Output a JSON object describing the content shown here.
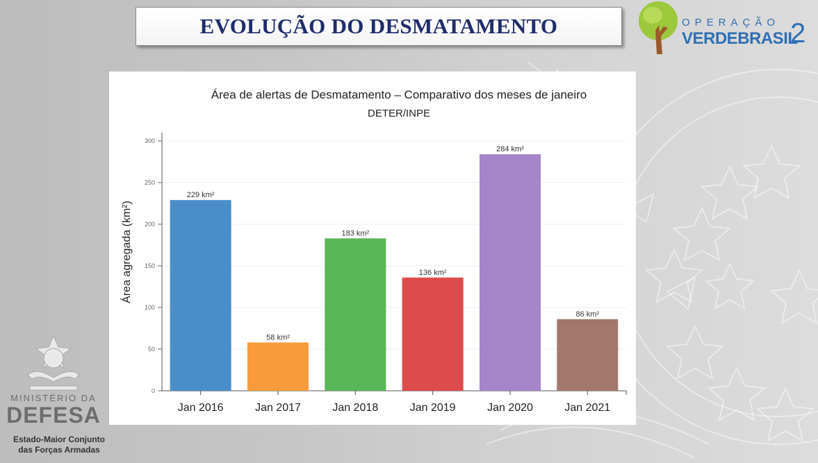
{
  "header": {
    "title": "EVOLUÇÃO DO DESMATAMENTO"
  },
  "logo_operacao": {
    "line1": "OPERAÇÃO",
    "line2": "VERDEBRASIL",
    "number": "2"
  },
  "ministry": {
    "label": "MINISTÉRIO DA",
    "name": "DEFESA",
    "subtitle_line1": "Estado-Maior Conjunto",
    "subtitle_line2": "das Forças Armadas"
  },
  "chart_data": {
    "type": "bar",
    "title": "Área de alertas de Desmatamento – Comparativo dos meses de janeiro",
    "subtitle": "DETER/INPE",
    "xlabel": "",
    "ylabel": "Área agregada (km²)",
    "ylim": [
      0,
      310
    ],
    "yticks": [
      0,
      50,
      100,
      150,
      200,
      250,
      300
    ],
    "grid": true,
    "categories": [
      "Jan 2016",
      "Jan 2017",
      "Jan 2018",
      "Jan 2019",
      "Jan 2020",
      "Jan 2021"
    ],
    "values": [
      229,
      58,
      183,
      136,
      284,
      86
    ],
    "data_labels": [
      "229 km²",
      "58 km²",
      "183 km²",
      "136 km²",
      "284 km²",
      "86 km²"
    ],
    "colors": [
      "#4a8ec9",
      "#f99a3d",
      "#57b657",
      "#dd4c4a",
      "#a584c9",
      "#a1786b"
    ]
  }
}
